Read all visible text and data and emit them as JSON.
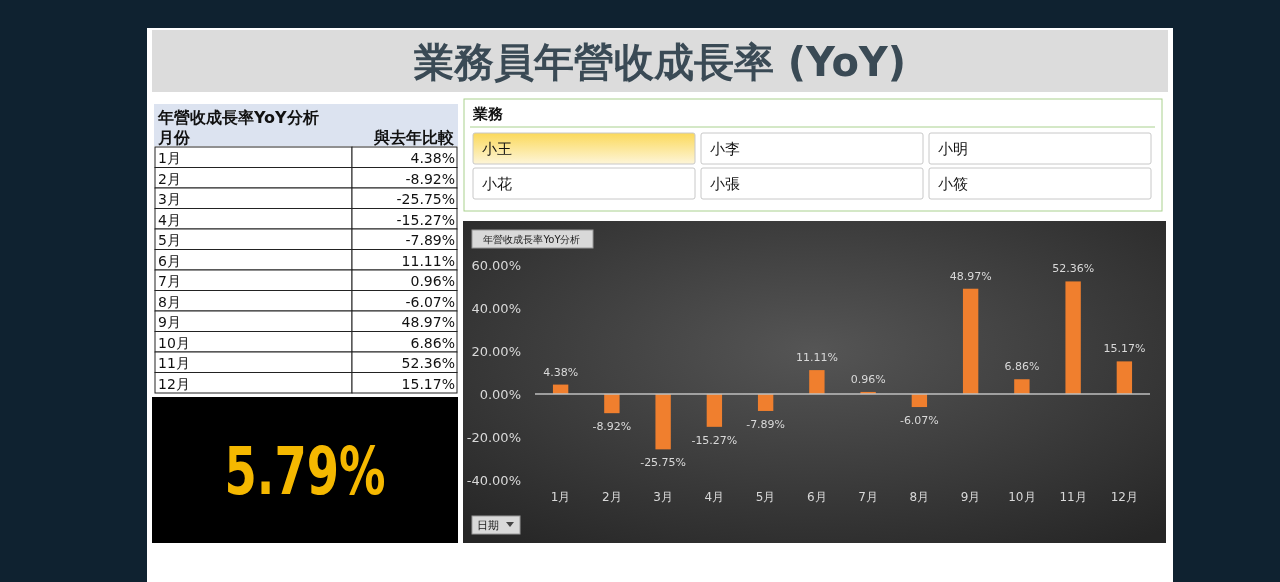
{
  "chart_data": [
    {
      "type": "bar",
      "title": "業務員年營收成長率 (YoY)",
      "subtitle": "年營收成長率YoY分析",
      "xlabel": "日期",
      "categories": [
        "1月",
        "2月",
        "3月",
        "4月",
        "5月",
        "6月",
        "7月",
        "8月",
        "9月",
        "10月",
        "11月",
        "12月"
      ],
      "values": [
        4.38,
        -8.92,
        -25.75,
        -15.27,
        -7.89,
        11.11,
        0.96,
        -6.07,
        48.97,
        6.86,
        52.36,
        15.17
      ],
      "value_labels": [
        "4.38%",
        "-8.92%",
        "-25.75%",
        "-15.27%",
        "-7.89%",
        "11.11%",
        "0.96%",
        "-6.07%",
        "48.97%",
        "6.86%",
        "52.36%",
        "15.17%"
      ],
      "color": "#f07f2e",
      "ylim": [
        -40,
        60
      ],
      "yticks": [
        {
          "value": -40,
          "label": "-40.00%"
        },
        {
          "value": -20,
          "label": "-20.00%"
        },
        {
          "value": 0,
          "label": "0.00%"
        },
        {
          "value": 20,
          "label": "20.00%"
        },
        {
          "value": 40,
          "label": "40.00%"
        },
        {
          "value": 60,
          "label": "60.00%"
        }
      ],
      "annotations": [
        "年營收成長率YoY分析",
        "月份",
        "與去年比較"
      ]
    },
    {
      "type": "other",
      "title": "業務",
      "annotations": [
        "小王",
        "小李",
        "小明",
        "小花",
        "小張",
        "小筱"
      ]
    },
    {
      "type": "other",
      "annotations": [
        "5.79%"
      ]
    }
  ]
}
